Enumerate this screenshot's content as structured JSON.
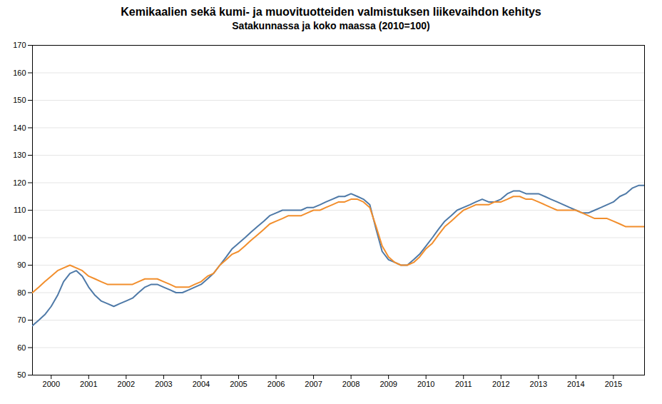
{
  "chart_data": {
    "type": "line",
    "title": "Kemikaalien sekä kumi- ja muovituotteiden valmistuksen liikevaihdon kehitys",
    "subtitle": "Satakunnassa ja koko maassa (2010=100)",
    "x": [
      1999.5,
      1999.67,
      1999.83,
      2000.0,
      2000.17,
      2000.33,
      2000.5,
      2000.67,
      2000.83,
      2001.0,
      2001.17,
      2001.33,
      2001.5,
      2001.67,
      2001.83,
      2002.0,
      2002.17,
      2002.33,
      2002.5,
      2002.67,
      2002.83,
      2003.0,
      2003.17,
      2003.33,
      2003.5,
      2003.67,
      2003.83,
      2004.0,
      2004.17,
      2004.33,
      2004.5,
      2004.67,
      2004.83,
      2005.0,
      2005.17,
      2005.33,
      2005.5,
      2005.67,
      2005.83,
      2006.0,
      2006.17,
      2006.33,
      2006.5,
      2006.67,
      2006.83,
      2007.0,
      2007.17,
      2007.33,
      2007.5,
      2007.67,
      2007.83,
      2008.0,
      2008.17,
      2008.33,
      2008.5,
      2008.67,
      2008.83,
      2009.0,
      2009.17,
      2009.33,
      2009.5,
      2009.67,
      2009.83,
      2010.0,
      2010.17,
      2010.33,
      2010.5,
      2010.67,
      2010.83,
      2011.0,
      2011.17,
      2011.33,
      2011.5,
      2011.67,
      2011.83,
      2012.0,
      2012.17,
      2012.33,
      2012.5,
      2012.67,
      2012.83,
      2013.0,
      2013.17,
      2013.33,
      2013.5,
      2013.67,
      2013.83,
      2014.0,
      2014.17,
      2014.33,
      2014.5,
      2014.67,
      2014.83,
      2015.0,
      2015.17,
      2015.33,
      2015.5,
      2015.67,
      2015.83
    ],
    "series": [
      {
        "values": [
          68,
          70,
          72,
          75,
          79,
          84,
          87,
          88,
          86,
          82,
          79,
          77,
          76,
          75,
          76,
          77,
          78,
          80,
          82,
          83,
          83,
          82,
          81,
          80,
          80,
          81,
          82,
          83,
          85,
          87,
          90,
          93,
          96,
          98,
          100,
          102,
          104,
          106,
          108,
          109,
          110,
          110,
          110,
          110,
          111,
          111,
          112,
          113,
          114,
          115,
          115,
          116,
          115,
          114,
          112,
          103,
          95,
          92,
          91,
          90,
          90,
          92,
          94,
          97,
          100,
          103,
          106,
          108,
          110,
          111,
          112,
          113,
          114,
          113,
          113,
          114,
          116,
          117,
          117,
          116,
          116,
          116,
          115,
          114,
          113,
          112,
          111,
          110,
          109,
          109,
          110,
          111,
          112,
          113,
          115,
          116,
          118,
          119,
          119
        ]
      },
      {
        "values": [
          80,
          82,
          84,
          86,
          88,
          89,
          90,
          89,
          88,
          86,
          85,
          84,
          83,
          83,
          83,
          83,
          83,
          84,
          85,
          85,
          85,
          84,
          83,
          82,
          82,
          82,
          83,
          84,
          86,
          87,
          90,
          92,
          94,
          95,
          97,
          99,
          101,
          103,
          105,
          106,
          107,
          108,
          108,
          108,
          109,
          110,
          110,
          111,
          112,
          113,
          113,
          114,
          114,
          113,
          111,
          104,
          97,
          93,
          91,
          90,
          90,
          91,
          93,
          96,
          98,
          101,
          104,
          106,
          108,
          110,
          111,
          112,
          112,
          112,
          113,
          113,
          114,
          115,
          115,
          114,
          114,
          113,
          112,
          111,
          110,
          110,
          110,
          110,
          109,
          108,
          107,
          107,
          107,
          106,
          105,
          104,
          104,
          104,
          104
        ]
      }
    ],
    "xlim": [
      1999.5,
      2015.83
    ],
    "xticks": [
      2000,
      2001,
      2002,
      2003,
      2004,
      2005,
      2006,
      2007,
      2008,
      2009,
      2010,
      2011,
      2012,
      2013,
      2014,
      2015
    ],
    "ylim": [
      50,
      170
    ],
    "yticks": [
      50,
      60,
      70,
      80,
      90,
      100,
      110,
      120,
      130,
      140,
      150,
      160,
      170
    ],
    "grid": true
  }
}
